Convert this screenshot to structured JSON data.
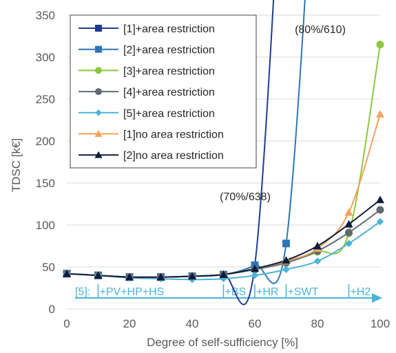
{
  "chart_data": {
    "type": "line",
    "xlabel": "Degree of self-sufficiency [%]",
    "ylabel": "TDSC [k€]",
    "xlim": [
      0,
      100
    ],
    "ylim": [
      0,
      350
    ],
    "x_ticks": [
      "0",
      "20",
      "40",
      "60",
      "80",
      "100"
    ],
    "y_ticks": [
      "0",
      "50",
      "100",
      "150",
      "200",
      "250",
      "300",
      "350"
    ],
    "grid": "horizontal",
    "legend_position": "top-left",
    "series": [
      {
        "name": "[1]+area restriction",
        "color": "#1f3a93",
        "marker": "square",
        "x": [
          0,
          10,
          20,
          30,
          40,
          50,
          60
        ],
        "y": [
          42,
          40,
          38,
          38,
          39,
          41,
          52
        ],
        "overflow": {
          "x": 70,
          "y": 638
        }
      },
      {
        "name": "[2]+area restriction",
        "color": "#2e75b6",
        "marker": "square",
        "x": [
          0,
          10,
          20,
          30,
          40,
          50,
          60,
          70
        ],
        "y": [
          42,
          40,
          38,
          38,
          39,
          41,
          52,
          78
        ],
        "overflow": {
          "x": 80,
          "y": 610
        }
      },
      {
        "name": "[3]+area restriction",
        "color": "#8dc63f",
        "marker": "circle",
        "x": [
          0,
          10,
          20,
          30,
          40,
          50,
          60,
          70,
          80,
          90,
          100
        ],
        "y": [
          42,
          40,
          38,
          38,
          39,
          41,
          47,
          56,
          68,
          90,
          315
        ]
      },
      {
        "name": "[4]+area restriction",
        "color": "#5f6b73",
        "marker": "circle",
        "x": [
          0,
          10,
          20,
          30,
          40,
          50,
          60,
          70,
          80,
          90,
          100
        ],
        "y": [
          42,
          40,
          38,
          38,
          39,
          41,
          47,
          55,
          69,
          91,
          118
        ]
      },
      {
        "name": "[5]+area restriction",
        "color": "#4bb3d8",
        "marker": "diamond",
        "x": [
          0,
          10,
          20,
          30,
          40,
          50,
          60,
          70,
          80,
          90,
          100
        ],
        "y": [
          42,
          40,
          37,
          36,
          35,
          36,
          40,
          47,
          57,
          78,
          104
        ]
      },
      {
        "name": "[1]no area restriction",
        "color": "#f4a25d",
        "marker": "triangle",
        "x": [
          0,
          10,
          20,
          30,
          40,
          50,
          60,
          70,
          80,
          90,
          100
        ],
        "y": [
          42,
          40,
          38,
          38,
          39,
          41,
          48,
          57,
          72,
          115,
          232
        ]
      },
      {
        "name": "[2]no area restriction",
        "color": "#0d1b3e",
        "marker": "triangle",
        "x": [
          0,
          10,
          20,
          30,
          40,
          50,
          60,
          70,
          80,
          90,
          100
        ],
        "y": [
          42,
          40,
          38,
          38,
          39,
          41,
          48,
          58,
          75,
          101,
          130
        ]
      }
    ],
    "annotations": [
      {
        "text": "(70%/638)",
        "x": 70,
        "y": 638
      },
      {
        "text": "(80%/610)",
        "x": 80,
        "y": 610
      }
    ],
    "extension_bar": {
      "color": "#4bb3d8",
      "label": "[5]:",
      "steps": [
        {
          "x": 10,
          "label": "+PV+HP+HS"
        },
        {
          "x": 50,
          "label": "+BS"
        },
        {
          "x": 60,
          "label": "+HR"
        },
        {
          "x": 70,
          "label": "+SWT"
        },
        {
          "x": 90,
          "label": "+H2"
        }
      ]
    }
  }
}
